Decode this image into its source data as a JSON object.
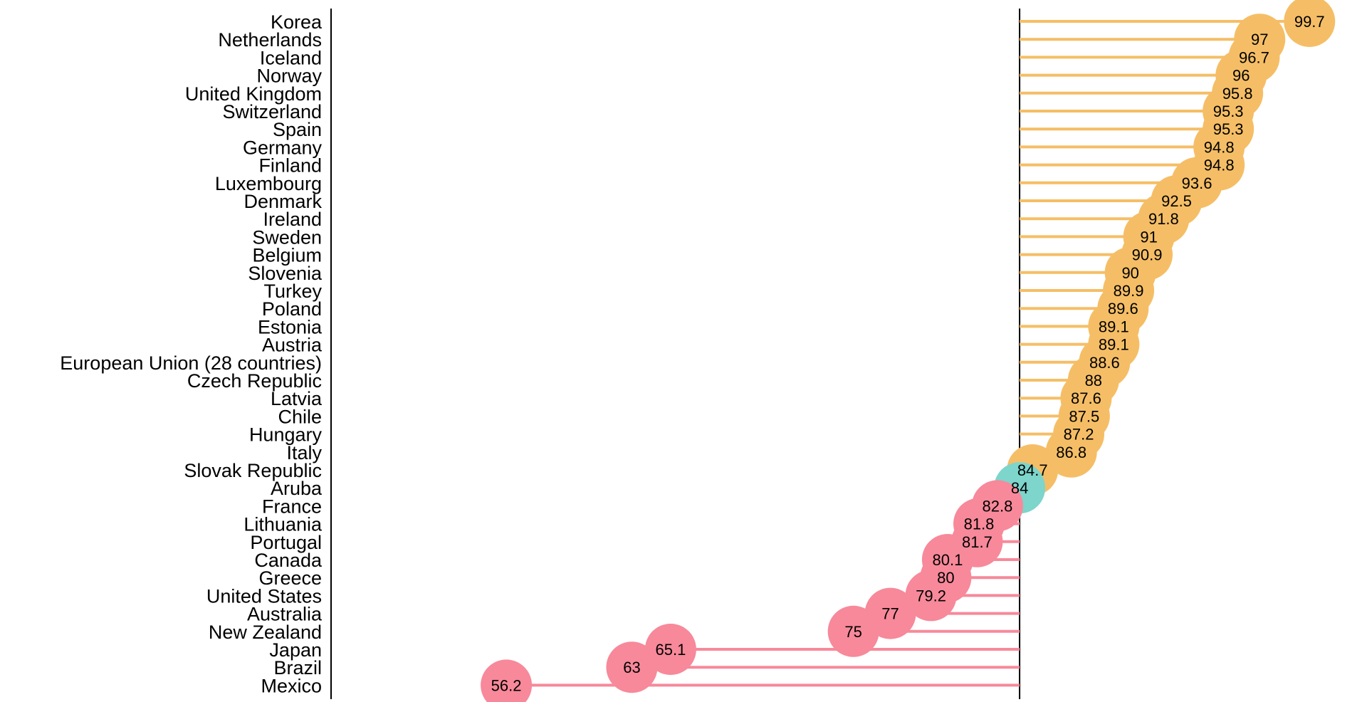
{
  "chart_data": {
    "type": "lollipop",
    "baseline": 84,
    "xlim": [
      54.5,
      100.5
    ],
    "grid": false,
    "legend": "none",
    "colors": {
      "above": "#F5BE66",
      "below": "#F7899A",
      "baseline": "#7DD5CC"
    },
    "categories": [
      "Korea",
      "Netherlands",
      "Iceland",
      "Norway",
      "United Kingdom",
      "Switzerland",
      "Spain",
      "Germany",
      "Finland",
      "Luxembourg",
      "Denmark",
      "Ireland",
      "Sweden",
      "Belgium",
      "Slovenia",
      "Turkey",
      "Poland",
      "Estonia",
      "Austria",
      "European Union (28 countries)",
      "Czech Republic",
      "Latvia",
      "Chile",
      "Hungary",
      "Italy",
      "Slovak Republic",
      "Aruba",
      "France",
      "Lithuania",
      "Portugal",
      "Canada",
      "Greece",
      "United States",
      "Australia",
      "New Zealand",
      "Japan",
      "Brazil",
      "Mexico"
    ],
    "values": [
      99.7,
      97,
      96.7,
      96,
      95.8,
      95.3,
      95.3,
      94.8,
      94.8,
      93.6,
      92.5,
      91.8,
      91,
      90.9,
      90,
      89.9,
      89.6,
      89.1,
      89.1,
      88.6,
      88,
      87.6,
      87.5,
      87.2,
      86.8,
      84.7,
      84,
      82.8,
      81.8,
      81.7,
      80.1,
      80,
      79.2,
      77,
      75,
      65.1,
      63,
      56.2
    ],
    "value_labels": [
      "99.7",
      "97",
      "96.7",
      "96",
      "95.8",
      "95.3",
      "95.3",
      "94.8",
      "94.8",
      "93.6",
      "92.5",
      "91.8",
      "91",
      "90.9",
      "90",
      "89.9",
      "89.6",
      "89.1",
      "89.1",
      "88.6",
      "88",
      "87.6",
      "87.5",
      "87.2",
      "86.8",
      "84.7",
      "84",
      "82.8",
      "81.8",
      "81.7",
      "80.1",
      "80",
      "79.2",
      "77",
      "75",
      "65.1",
      "63",
      "56.2"
    ]
  }
}
